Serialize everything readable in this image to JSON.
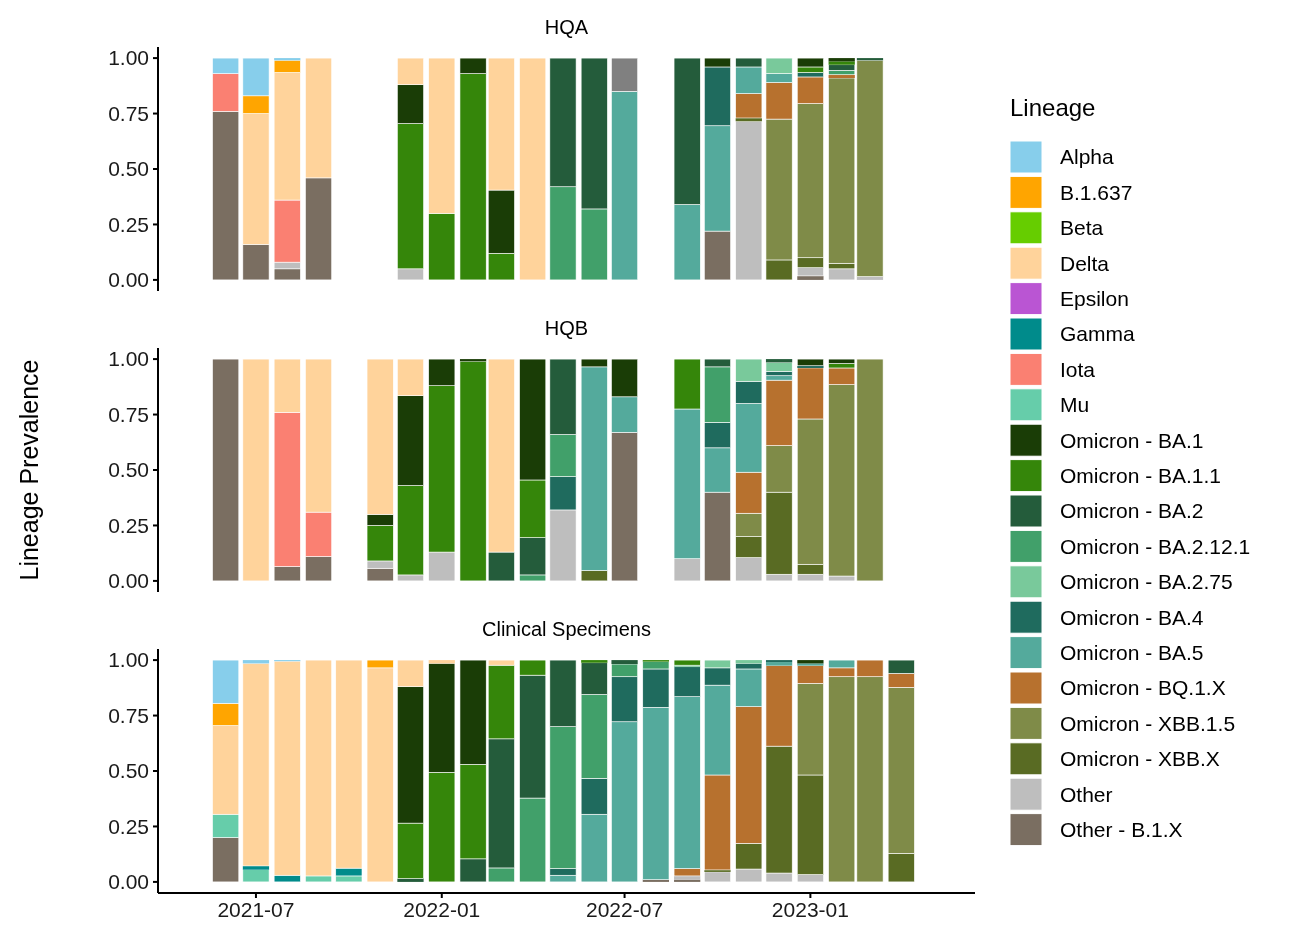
{
  "chart_data": [
    {
      "type": "bar",
      "stacked": true,
      "title": "HQA",
      "legend": "right",
      "legend_title": "Lineage",
      "tick_labels": "y",
      "x": [
        "2021-06",
        "2021-07",
        "2021-08",
        "2021-09",
        "2021-10",
        "2021-11",
        "2021-12",
        "2022-01",
        "2022-02",
        "2022-03",
        "2022-04",
        "2022-05",
        "2022-06",
        "2022-07",
        "2022-08",
        "2022-09",
        "2022-10",
        "2022-11",
        "2022-12",
        "2023-01",
        "2023-02",
        "2023-03",
        "2023-04"
      ],
      "ylim": [
        -0.05,
        1.05
      ],
      "yticks": [
        {
          "value": 0,
          "label": "0.00"
        },
        {
          "value": 0.25,
          "label": "0.25"
        },
        {
          "value": 0.5,
          "label": "0.50"
        },
        {
          "value": 0.75,
          "label": "0.75"
        },
        {
          "value": 1,
          "label": "1.00"
        }
      ],
      "series": [
        {
          "name": "Other - B.1.X",
          "color": "#7a6e61",
          "values": [
            0.76,
            0.16,
            0.05,
            0.46,
            null,
            null,
            null,
            null,
            null,
            null,
            null,
            null,
            null,
            null,
            null,
            null,
            0.22,
            null,
            null,
            0.018,
            null,
            null,
            null
          ]
        },
        {
          "name": "Other",
          "color": "#bebebe",
          "values": [
            null,
            null,
            0.03,
            null,
            null,
            null,
            0.05,
            null,
            null,
            null,
            null,
            null,
            null,
            null,
            null,
            null,
            null,
            0.715,
            null,
            0.037,
            0.05,
            0.015,
            null
          ]
        },
        {
          "name": "Omicron - XBB.X",
          "color": "#596b23",
          "values": [
            null,
            null,
            null,
            null,
            null,
            null,
            null,
            null,
            null,
            null,
            null,
            null,
            null,
            null,
            null,
            null,
            null,
            0.015,
            0.09,
            0.045,
            0.025,
            null,
            null
          ]
        },
        {
          "name": "Omicron - XBB.1.5",
          "color": "#7f8b48",
          "values": [
            null,
            null,
            null,
            null,
            null,
            null,
            null,
            null,
            null,
            null,
            null,
            null,
            null,
            null,
            null,
            null,
            null,
            null,
            0.635,
            0.695,
            0.835,
            0.975,
            null
          ]
        },
        {
          "name": "Omicron - BQ.1.X",
          "color": "#b7712e",
          "values": [
            null,
            null,
            null,
            null,
            null,
            null,
            null,
            null,
            null,
            null,
            null,
            null,
            null,
            null,
            null,
            null,
            null,
            0.11,
            0.165,
            0.12,
            0.015,
            null,
            null
          ]
        },
        {
          "name": "Omicron - BA.5",
          "color": "#54aa9c",
          "values": [
            null,
            null,
            null,
            null,
            null,
            null,
            null,
            null,
            null,
            null,
            null,
            null,
            null,
            0.85,
            null,
            0.34,
            0.475,
            0.12,
            0.04,
            null,
            null,
            null,
            null
          ]
        },
        {
          "name": "Omicron - BA.4",
          "color": "#1f6b5e",
          "values": [
            null,
            null,
            null,
            null,
            null,
            null,
            null,
            null,
            null,
            null,
            null,
            null,
            null,
            null,
            null,
            null,
            0.265,
            null,
            null,
            0.02,
            null,
            null,
            null
          ]
        },
        {
          "name": "Omicron - BA.2.75",
          "color": "#79c99b",
          "values": [
            null,
            null,
            null,
            null,
            null,
            null,
            null,
            null,
            null,
            null,
            null,
            null,
            null,
            null,
            null,
            null,
            null,
            null,
            0.07,
            null,
            null,
            null,
            null
          ]
        },
        {
          "name": "Omicron - BA.2.12.1",
          "color": "#41a06a",
          "values": [
            null,
            null,
            null,
            null,
            null,
            null,
            null,
            null,
            null,
            null,
            null,
            0.42,
            0.32,
            null,
            null,
            null,
            null,
            null,
            null,
            null,
            0.02,
            null,
            null
          ]
        },
        {
          "name": "Omicron - BA.2",
          "color": "#245c3b",
          "values": [
            null,
            null,
            null,
            null,
            null,
            null,
            null,
            null,
            null,
            null,
            null,
            0.58,
            0.68,
            null,
            null,
            0.66,
            null,
            0.04,
            null,
            null,
            0.025,
            0.01,
            null
          ]
        },
        {
          "name": "Omicron - BA.1.1",
          "color": "#35860a",
          "values": [
            null,
            null,
            null,
            null,
            null,
            null,
            0.655,
            0.3,
            0.93,
            0.12,
            null,
            null,
            null,
            null,
            null,
            null,
            null,
            null,
            null,
            0.025,
            0.015,
            null,
            null
          ]
        },
        {
          "name": "Omicron - BA.1",
          "color": "#1a3d06",
          "values": [
            null,
            null,
            null,
            null,
            null,
            null,
            0.175,
            null,
            0.07,
            0.285,
            null,
            null,
            null,
            null,
            null,
            null,
            0.04,
            null,
            null,
            0.04,
            0.015,
            null,
            null
          ]
        },
        {
          "name": "Mu",
          "color": "#66cdaa",
          "values": [
            null,
            null,
            null,
            null,
            null,
            null,
            null,
            null,
            null,
            null,
            null,
            null,
            null,
            null,
            null,
            null,
            null,
            null,
            null,
            null,
            null,
            null,
            null
          ]
        },
        {
          "name": "Iota",
          "color": "#fa8072",
          "values": [
            0.17,
            null,
            0.28,
            null,
            null,
            null,
            null,
            null,
            null,
            null,
            null,
            null,
            null,
            null,
            null,
            null,
            null,
            null,
            null,
            null,
            null,
            null,
            null
          ]
        },
        {
          "name": "Gamma",
          "color": "#008b8b",
          "values": [
            null,
            null,
            null,
            null,
            null,
            null,
            null,
            null,
            null,
            null,
            null,
            null,
            null,
            null,
            null,
            null,
            null,
            null,
            null,
            null,
            null,
            null,
            null
          ]
        },
        {
          "name": "Epsilon",
          "color": "#ba55d3",
          "values": [
            null,
            null,
            null,
            null,
            null,
            null,
            null,
            null,
            null,
            null,
            null,
            null,
            null,
            null,
            null,
            null,
            null,
            null,
            null,
            null,
            null,
            null,
            null
          ]
        },
        {
          "name": "Delta",
          "color": "#ffd39b",
          "values": [
            null,
            0.59,
            0.575,
            0.54,
            null,
            null,
            0.12,
            0.7,
            null,
            0.595,
            1,
            null,
            null,
            null,
            null,
            null,
            null,
            null,
            null,
            null,
            null,
            null,
            null
          ]
        },
        {
          "name": "Beta",
          "color": "#66cd00",
          "values": [
            null,
            null,
            null,
            null,
            null,
            null,
            null,
            null,
            null,
            null,
            null,
            null,
            null,
            null,
            null,
            null,
            null,
            null,
            null,
            null,
            null,
            null,
            null
          ]
        },
        {
          "name": "B.1.637",
          "color": "#ffa500",
          "values": [
            null,
            0.08,
            0.055,
            null,
            null,
            null,
            null,
            null,
            null,
            null,
            null,
            null,
            null,
            null,
            null,
            null,
            null,
            null,
            null,
            null,
            null,
            null,
            null
          ]
        },
        {
          "name": "Alpha",
          "color": "#87ceeb",
          "values": [
            0.07,
            0.17,
            0.01,
            null,
            null,
            null,
            null,
            null,
            null,
            null,
            null,
            null,
            null,
            null,
            null,
            null,
            null,
            null,
            null,
            null,
            null,
            null,
            null
          ]
        },
        {
          "color": "#808080",
          "values": [
            null,
            null,
            null,
            null,
            null,
            null,
            null,
            null,
            null,
            null,
            null,
            null,
            null,
            0.15,
            null,
            null,
            null,
            null,
            null,
            null,
            null,
            null,
            null
          ]
        }
      ]
    },
    {
      "type": "bar",
      "stacked": true,
      "title": "HQB",
      "ylabel": "Lineage Prevalence",
      "tick_labels": "y",
      "x": [
        "2021-06",
        "2021-07",
        "2021-08",
        "2021-09",
        "2021-10",
        "2021-11",
        "2021-12",
        "2022-01",
        "2022-02",
        "2022-03",
        "2022-04",
        "2022-05",
        "2022-06",
        "2022-07",
        "2022-08",
        "2022-09",
        "2022-10",
        "2022-11",
        "2022-12",
        "2023-01",
        "2023-02",
        "2023-03",
        "2023-04"
      ],
      "ylim": [
        -0.05,
        1.05
      ],
      "yticks": [
        {
          "value": 0,
          "label": "0.00"
        },
        {
          "value": 0.25,
          "label": "0.25"
        },
        {
          "value": 0.5,
          "label": "0.50"
        },
        {
          "value": 0.75,
          "label": "0.75"
        },
        {
          "value": 1,
          "label": "1.00"
        }
      ],
      "series": [
        {
          "color": "#7a6e61",
          "values": [
            1,
            null,
            0.065,
            0.11,
            null,
            0.057,
            null,
            null,
            null,
            null,
            null,
            null,
            null,
            0.67,
            null,
            null,
            0.4,
            null,
            null,
            null,
            null,
            null,
            null
          ]
        },
        {
          "color": "#bebebe",
          "values": [
            null,
            null,
            null,
            null,
            null,
            0.033,
            0.027,
            0.13,
            null,
            null,
            null,
            0.32,
            null,
            null,
            null,
            0.1,
            null,
            0.105,
            0.03,
            0.03,
            0.022,
            null,
            null
          ]
        },
        {
          "color": "#596b23",
          "values": [
            null,
            null,
            null,
            null,
            null,
            null,
            null,
            null,
            null,
            null,
            null,
            null,
            0.047,
            null,
            null,
            null,
            null,
            0.095,
            0.37,
            0.045,
            null,
            null,
            null
          ]
        },
        {
          "color": "#7f8b48",
          "values": [
            null,
            null,
            null,
            null,
            null,
            null,
            null,
            null,
            null,
            null,
            null,
            null,
            null,
            null,
            null,
            null,
            null,
            0.105,
            0.21,
            0.655,
            0.863,
            1,
            null
          ]
        },
        {
          "color": "#b7712e",
          "values": [
            null,
            null,
            null,
            null,
            null,
            null,
            null,
            null,
            null,
            null,
            null,
            null,
            null,
            null,
            null,
            null,
            null,
            0.185,
            0.295,
            0.23,
            0.075,
            null,
            null
          ]
        },
        {
          "color": "#54aa9c",
          "values": [
            null,
            null,
            null,
            null,
            null,
            null,
            null,
            null,
            null,
            null,
            null,
            null,
            0.918,
            0.16,
            null,
            0.675,
            0.2,
            0.31,
            0.02,
            null,
            null,
            null,
            null
          ]
        },
        {
          "color": "#1f6b5e",
          "values": [
            null,
            null,
            null,
            null,
            null,
            null,
            null,
            null,
            null,
            null,
            null,
            0.15,
            null,
            null,
            null,
            null,
            0.115,
            0.1,
            0.02,
            0.01,
            null,
            null,
            null
          ]
        },
        {
          "color": "#79c99b",
          "values": [
            null,
            null,
            null,
            null,
            null,
            null,
            null,
            null,
            null,
            null,
            null,
            null,
            null,
            null,
            null,
            null,
            null,
            0.1,
            0.04,
            null,
            null,
            null,
            null
          ]
        },
        {
          "color": "#41a06a",
          "values": [
            null,
            null,
            null,
            null,
            null,
            null,
            null,
            null,
            null,
            null,
            0.027,
            0.19,
            null,
            null,
            null,
            null,
            0.25,
            null,
            null,
            null,
            null,
            null,
            null
          ]
        },
        {
          "color": "#245c3b",
          "values": [
            null,
            null,
            null,
            null,
            null,
            null,
            null,
            null,
            null,
            0.13,
            0.168,
            0.34,
            null,
            null,
            null,
            null,
            0.035,
            null,
            0.015,
            null,
            null,
            null,
            null
          ]
        },
        {
          "color": "#35860a",
          "values": [
            null,
            null,
            null,
            null,
            null,
            0.16,
            0.403,
            0.75,
            0.99,
            null,
            0.26,
            null,
            null,
            null,
            null,
            0.225,
            null,
            null,
            null,
            null,
            0.02,
            null,
            null
          ]
        },
        {
          "color": "#1a3d06",
          "values": [
            null,
            null,
            null,
            null,
            null,
            0.05,
            0.405,
            0.12,
            0.01,
            null,
            0.545,
            null,
            0.035,
            0.17,
            null,
            null,
            null,
            null,
            null,
            0.03,
            0.02,
            null,
            null
          ]
        },
        {
          "color": "#fa8072",
          "values": [
            null,
            null,
            0.695,
            0.2,
            null,
            null,
            null,
            null,
            null,
            null,
            null,
            null,
            null,
            null,
            null,
            null,
            null,
            null,
            null,
            null,
            null,
            null,
            null
          ]
        },
        {
          "color": "#ffd39b",
          "values": [
            null,
            1,
            0.24,
            0.69,
            null,
            0.7,
            0.165,
            null,
            null,
            0.87,
            null,
            null,
            null,
            null,
            null,
            null,
            null,
            null,
            null,
            null,
            null,
            null,
            null
          ]
        }
      ]
    },
    {
      "type": "bar",
      "stacked": true,
      "title": "Clinical Specimens",
      "x": [
        "2021-06",
        "2021-07",
        "2021-08",
        "2021-09",
        "2021-10",
        "2021-11",
        "2021-12",
        "2022-01",
        "2022-02",
        "2022-03",
        "2022-04",
        "2022-05",
        "2022-06",
        "2022-07",
        "2022-08",
        "2022-09",
        "2022-10",
        "2022-11",
        "2022-12",
        "2023-01",
        "2023-02",
        "2023-03",
        "2023-04"
      ],
      "xlim": [
        "2021-03-26",
        "2023-06-13"
      ],
      "xticks": [
        "2021-07",
        "2022-01",
        "2022-07",
        "2023-01"
      ],
      "ylim": [
        -0.05,
        1.05
      ],
      "yticks": [
        {
          "value": 0,
          "label": "0.00"
        },
        {
          "value": 0.25,
          "label": "0.25"
        },
        {
          "value": 0.5,
          "label": "0.50"
        },
        {
          "value": 0.75,
          "label": "0.75"
        },
        {
          "value": 1,
          "label": "1.00"
        }
      ],
      "series": [
        {
          "color": "#7a6e61",
          "values": [
            0.2,
            null,
            null,
            null,
            null,
            null,
            null,
            null,
            null,
            null,
            null,
            null,
            null,
            null,
            0.01,
            0.01,
            null,
            null,
            null,
            null,
            null,
            null,
            null
          ]
        },
        {
          "color": "#bebebe",
          "values": [
            null,
            null,
            null,
            null,
            null,
            null,
            null,
            null,
            null,
            null,
            null,
            null,
            null,
            null,
            null,
            0.017,
            0.045,
            0.058,
            0.04,
            0.033,
            null,
            null,
            null
          ]
        },
        {
          "color": "#596b23",
          "values": [
            null,
            null,
            null,
            null,
            null,
            null,
            null,
            null,
            null,
            null,
            null,
            null,
            null,
            null,
            null,
            null,
            0.009,
            0.116,
            0.572,
            0.449,
            null,
            null,
            0.129
          ]
        },
        {
          "color": "#7f8b48",
          "values": [
            null,
            null,
            null,
            null,
            null,
            null,
            null,
            null,
            null,
            null,
            null,
            null,
            null,
            null,
            null,
            null,
            null,
            null,
            null,
            0.413,
            0.925,
            0.925,
            0.748
          ]
        },
        {
          "color": "#b7712e",
          "values": [
            null,
            null,
            null,
            null,
            null,
            null,
            null,
            null,
            null,
            null,
            null,
            null,
            null,
            null,
            null,
            0.033,
            0.428,
            0.616,
            0.363,
            0.08,
            0.04,
            0.075,
            0.063
          ]
        },
        {
          "color": "#54aa9c",
          "values": [
            null,
            null,
            null,
            null,
            null,
            null,
            null,
            null,
            null,
            null,
            null,
            0.03,
            0.305,
            0.722,
            0.777,
            0.775,
            0.405,
            0.17,
            0.016,
            0.01,
            0.035,
            null,
            null
          ]
        },
        {
          "color": "#1f6b5e",
          "values": [
            null,
            null,
            null,
            null,
            null,
            null,
            null,
            null,
            null,
            null,
            null,
            0.03,
            0.162,
            0.203,
            0.173,
            0.135,
            0.078,
            0.025,
            0.009,
            null,
            null,
            null,
            null
          ]
        },
        {
          "color": "#79c99b",
          "values": [
            null,
            null,
            null,
            null,
            null,
            null,
            null,
            null,
            null,
            null,
            null,
            null,
            null,
            null,
            null,
            0.007,
            0.035,
            0.015,
            null,
            null,
            null,
            null,
            null
          ]
        },
        {
          "color": "#41a06a",
          "values": [
            null,
            null,
            null,
            null,
            null,
            null,
            null,
            null,
            null,
            0.063,
            0.378,
            0.64,
            0.378,
            0.057,
            0.033,
            null,
            null,
            null,
            null,
            null,
            null,
            null,
            null
          ]
        },
        {
          "color": "#245c3b",
          "values": [
            null,
            null,
            null,
            null,
            null,
            null,
            0.015,
            null,
            0.104,
            0.582,
            0.554,
            0.3,
            0.143,
            0.018,
            null,
            null,
            null,
            null,
            null,
            null,
            null,
            null,
            0.06
          ]
        },
        {
          "color": "#35860a",
          "values": [
            null,
            null,
            null,
            null,
            null,
            null,
            0.25,
            0.494,
            0.426,
            0.332,
            0.068,
            null,
            0.012,
            null,
            0.007,
            0.023,
            null,
            null,
            null,
            null,
            null,
            null,
            null
          ]
        },
        {
          "color": "#1a3d06",
          "values": [
            null,
            null,
            null,
            null,
            null,
            null,
            0.615,
            0.491,
            0.47,
            null,
            null,
            null,
            null,
            null,
            null,
            null,
            null,
            null,
            null,
            0.015,
            null,
            null,
            null
          ]
        },
        {
          "color": "#66cdaa",
          "values": [
            0.105,
            0.055,
            null,
            0.027,
            0.027,
            null,
            null,
            null,
            null,
            null,
            null,
            null,
            null,
            null,
            null,
            null,
            null,
            null,
            null,
            null,
            null,
            null,
            null
          ]
        },
        {
          "color": "#008b8b",
          "values": [
            null,
            0.017,
            0.03,
            null,
            0.035,
            null,
            null,
            null,
            null,
            null,
            null,
            null,
            null,
            null,
            null,
            null,
            null,
            null,
            null,
            null,
            null,
            null,
            null
          ]
        },
        {
          "color": "#ffd39b",
          "values": [
            0.4,
            0.913,
            0.965,
            0.973,
            0.938,
            0.965,
            0.12,
            0.015,
            null,
            0.023,
            null,
            null,
            null,
            null,
            null,
            null,
            null,
            null,
            null,
            null,
            null,
            null,
            null
          ]
        },
        {
          "color": "#ffa500",
          "values": [
            0.1,
            null,
            null,
            null,
            null,
            0.035,
            null,
            null,
            null,
            null,
            null,
            null,
            null,
            null,
            null,
            null,
            null,
            null,
            null,
            null,
            null,
            null,
            null
          ]
        },
        {
          "color": "#87ceeb",
          "values": [
            0.195,
            0.015,
            0.005,
            null,
            null,
            null,
            null,
            null,
            null,
            null,
            null,
            null,
            null,
            null,
            null,
            null,
            null,
            null,
            null,
            null,
            null,
            null,
            null
          ]
        }
      ]
    }
  ]
}
